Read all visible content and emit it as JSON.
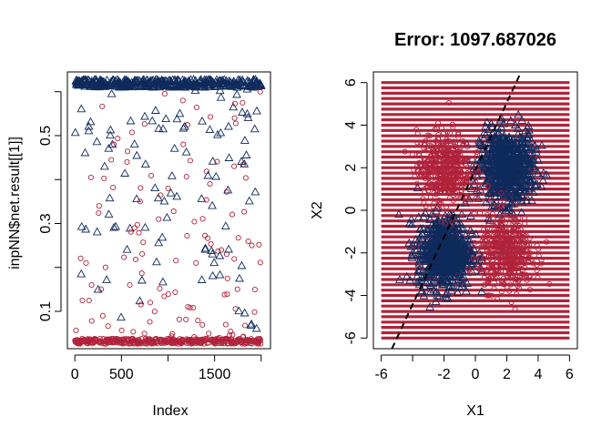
{
  "colors": {
    "red": "#B0233B",
    "blue": "#0F2A5C",
    "boundary": "#000000"
  },
  "chart_data": [
    {
      "type": "scatter",
      "title": "",
      "xlabel": "Index",
      "ylabel": "inpNN$net.result[[1]]",
      "xlim": [
        -80,
        2100
      ],
      "ylim": [
        0.015,
        0.645
      ],
      "xticks": [
        0,
        500,
        1000,
        1500,
        2000
      ],
      "xtick_labels": [
        "0",
        "500",
        "",
        "1500",
        ""
      ],
      "yticks": [
        0.1,
        0.2,
        0.3,
        0.4,
        0.5,
        0.6
      ],
      "ytick_labels": [
        "0.1",
        "",
        "0.3",
        "",
        "0.5",
        ""
      ],
      "grid": false,
      "n_points": 2000,
      "series": [
        {
          "marker": "circle",
          "color": "#B0233B",
          "summary": "mostly near 0.03 across all indices, with scattered values up to 0.6",
          "sample": [
            [
              50,
              0.03
            ],
            [
              120,
              0.21
            ],
            [
              180,
              0.16
            ],
            [
              260,
              0.34
            ],
            [
              300,
              0.09
            ],
            [
              330,
              0.2
            ],
            [
              420,
              0.48
            ],
            [
              560,
              0.44
            ],
            [
              590,
              0.16
            ],
            [
              640,
              0.29
            ],
            [
              700,
              0.35
            ],
            [
              810,
              0.12
            ],
            [
              900,
              0.31
            ],
            [
              1000,
              0.38
            ],
            [
              1160,
              0.58
            ],
            [
              1300,
              0.21
            ],
            [
              1450,
              0.39
            ],
            [
              1620,
              0.07
            ],
            [
              1710,
              0.43
            ],
            [
              1900,
              0.25
            ],
            [
              1990,
              0.6
            ]
          ]
        },
        {
          "marker": "triangle",
          "color": "#0F2A5C",
          "summary": "mostly near 0.62 across all indices, with scattered values down to 0.03",
          "sample": [
            [
              20,
              0.62
            ],
            [
              70,
              0.56
            ],
            [
              110,
              0.46
            ],
            [
              150,
              0.52
            ],
            [
              240,
              0.28
            ],
            [
              380,
              0.5
            ],
            [
              420,
              0.29
            ],
            [
              560,
              0.24
            ],
            [
              640,
              0.48
            ],
            [
              720,
              0.17
            ],
            [
              860,
              0.38
            ],
            [
              960,
              0.35
            ],
            [
              1070,
              0.47
            ],
            [
              1180,
              0.52
            ],
            [
              1400,
              0.24
            ],
            [
              1480,
              0.18
            ],
            [
              1650,
              0.52
            ],
            [
              1760,
              0.1
            ],
            [
              1860,
              0.54
            ],
            [
              1950,
              0.06
            ]
          ]
        }
      ]
    },
    {
      "type": "scatter",
      "title": "Error: 1097.687026",
      "xlabel": "X1",
      "ylabel": "X2",
      "xlim": [
        -6.5,
        6.5
      ],
      "ylim": [
        -6.5,
        6.5
      ],
      "xticks": [
        -6,
        -4,
        -2,
        0,
        2,
        4,
        6
      ],
      "xtick_labels": [
        "-6",
        "",
        "-2",
        "0",
        "2",
        "4",
        "6"
      ],
      "yticks": [
        -6,
        -4,
        -2,
        0,
        2,
        4,
        6
      ],
      "ytick_labels": [
        "-6",
        "-4",
        "-2",
        "0",
        "2",
        "4",
        "6"
      ],
      "grid": false,
      "grid_region": {
        "x": [
          -6,
          6
        ],
        "y": [
          -6,
          6
        ],
        "step": 0.25,
        "color": "#B0233B"
      },
      "clusters": [
        {
          "class": "triangle",
          "color": "#0F2A5C",
          "center": [
            2,
            2
          ],
          "sd": 0.85
        },
        {
          "class": "triangle",
          "color": "#0F2A5C",
          "center": [
            -2,
            -2
          ],
          "sd": 0.85
        },
        {
          "class": "circle",
          "color": "#B0233B",
          "center": [
            -2,
            2
          ],
          "sd": 0.85
        },
        {
          "class": "circle",
          "color": "#B0233B",
          "center": [
            2,
            -2
          ],
          "sd": 0.85
        }
      ],
      "decision_boundary": {
        "style": "dashed",
        "intercept": 1.9,
        "slope": 1.58
      }
    }
  ]
}
